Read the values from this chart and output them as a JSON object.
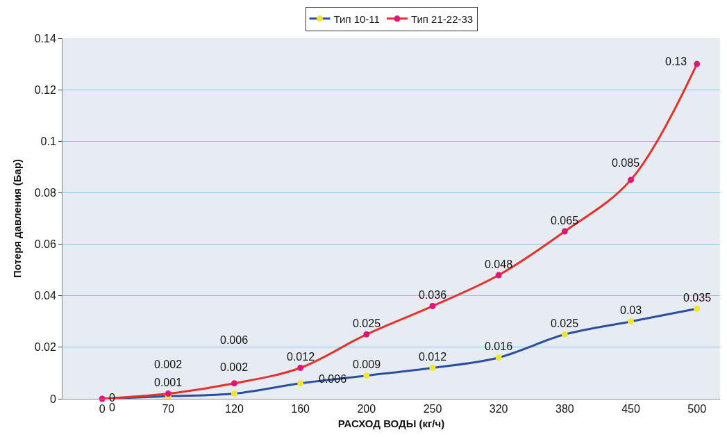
{
  "chart_data": {
    "type": "line",
    "xlabel": "РАСХОД ВОДЫ (кг/ч)",
    "ylabel": "Потеря давления (Бар)",
    "categories": [
      "0",
      "70",
      "120",
      "160",
      "200",
      "250",
      "320",
      "380",
      "450",
      "500"
    ],
    "series": [
      {
        "name": "Тип 10-11",
        "color": "#2b4ea0",
        "colors": [
          "#f0e630",
          "#f0e630",
          "#f0e630",
          "#f0e630",
          "#f0e630",
          "#f0e630",
          "#f0e630",
          "#f0e630",
          "#f0e630",
          "#f0e630"
        ],
        "values": [
          0,
          0.001,
          0.002,
          0.006,
          0.009,
          0.012,
          0.016,
          0.025,
          0.03,
          0.035
        ]
      },
      {
        "name": "Тип 21-22-33",
        "color": "#e8302a",
        "colors": [
          "#e0157a",
          "#e0157a",
          "#e0157a",
          "#e0157a",
          "#e0157a",
          "#e0157a",
          "#e0157a",
          "#e0157a",
          "#e0157a",
          "#e0157a"
        ],
        "values": [
          0,
          0.002,
          0.006,
          0.012,
          0.025,
          0.036,
          0.048,
          0.065,
          0.085,
          0.13
        ]
      }
    ],
    "ylim": [
      0,
      0.14
    ],
    "yticks": [
      0,
      0.02,
      0.04,
      0.06,
      0.08,
      0.1,
      0.12,
      0.14
    ],
    "grid": "y",
    "legend": "top",
    "marker": "circle",
    "line_style": "solid",
    "data_labels": true
  }
}
